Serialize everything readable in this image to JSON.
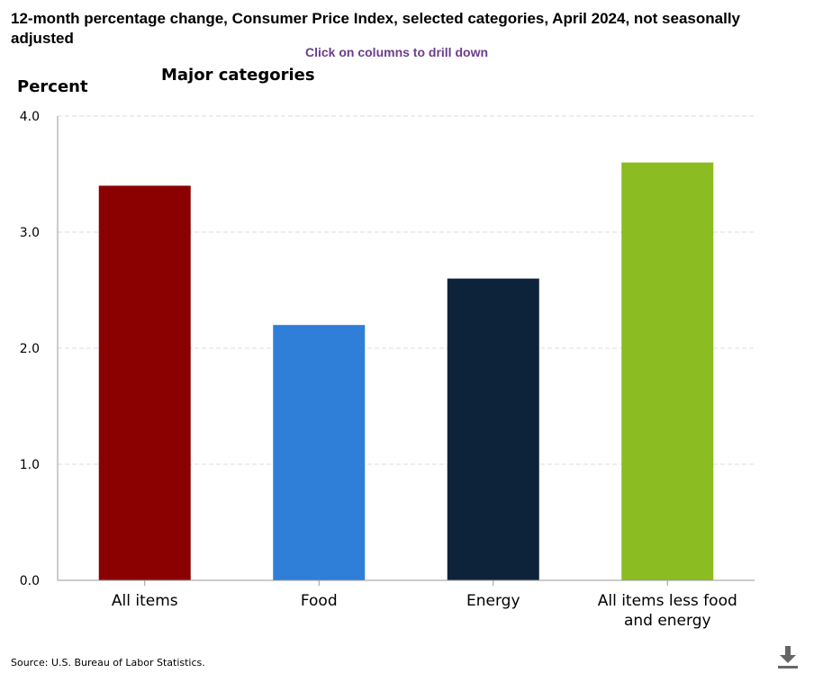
{
  "title": "12-month percentage change, Consumer Price Index, selected categories, April 2024, not seasonally adjusted",
  "drill_hint": "Click on columns to drill down",
  "source": "Source: U.S. Bureau of Labor Statistics.",
  "download_icon": "download-icon",
  "chart_data": {
    "type": "bar",
    "title": "Major categories",
    "xlabel": "",
    "ylabel": "Percent",
    "categories": [
      "All items",
      "Food",
      "Energy",
      "All items less food and energy"
    ],
    "values": [
      3.4,
      2.2,
      2.6,
      3.6
    ],
    "colors": [
      "#8b0000",
      "#2f7ed8",
      "#0d233a",
      "#8bbc21"
    ],
    "ylim": [
      0,
      4
    ],
    "yticks": [
      "0.0",
      "1.0",
      "2.0",
      "3.0",
      "4.0"
    ],
    "grid": true,
    "legend": "none"
  }
}
